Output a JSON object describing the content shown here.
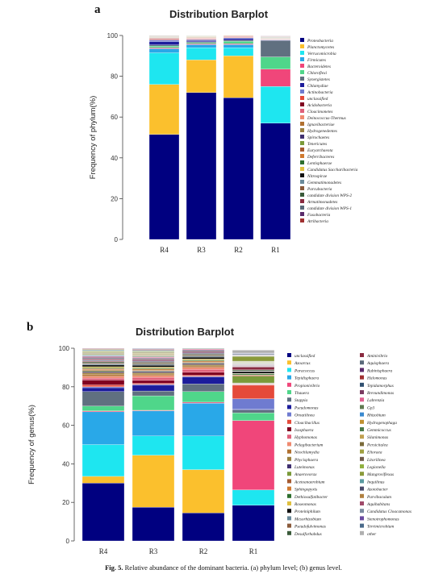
{
  "caption": {
    "label": "Fig. 5.",
    "text": "Relative abundance of the dominant bacteria. (a) phylum level; (b) genus level."
  },
  "chart_data": [
    {
      "panel": "a",
      "type": "bar",
      "stacked": true,
      "title": "Distribution Barplot",
      "ylabel": "Frequency of phylum(%)",
      "xlabel": "",
      "ylim": [
        0,
        100
      ],
      "yticks": [
        0,
        20,
        40,
        60,
        80,
        100
      ],
      "grid": false,
      "legend_position": "right",
      "categories": [
        "R4",
        "R3",
        "R2",
        "R1"
      ],
      "series": [
        {
          "name": "Proteobacteria",
          "color": "#000080",
          "values": [
            51.5,
            72,
            69.5,
            57
          ]
        },
        {
          "name": "Planctomycetes",
          "color": "#fbc02d",
          "values": [
            24.5,
            16,
            20.5,
            0
          ]
        },
        {
          "name": "Verrucomicrobia",
          "color": "#1ee6f0",
          "values": [
            15.5,
            6,
            4,
            18
          ]
        },
        {
          "name": "Firmicutes",
          "color": "#29a8e8",
          "values": [
            2,
            1.5,
            1.5,
            0
          ]
        },
        {
          "name": "Bacteroidetes",
          "color": "#f0467a",
          "values": [
            0.5,
            0.5,
            0.5,
            8.5
          ]
        },
        {
          "name": "Chloroflexi",
          "color": "#4fd68a",
          "values": [
            0.8,
            0.5,
            1.2,
            6
          ]
        },
        {
          "name": "Synergistetes",
          "color": "#607080",
          "values": [
            0.6,
            0.4,
            0.5,
            8
          ]
        },
        {
          "name": "Chlamydiae",
          "color": "#1c1c9c",
          "values": [
            1.6,
            0.6,
            0.8,
            0.2
          ]
        },
        {
          "name": "Actinobacteria",
          "color": "#6f7bd0",
          "values": [
            0.7,
            0.4,
            0.4,
            0.2
          ]
        },
        {
          "name": "unclassified",
          "color": "#e54a3a",
          "values": [
            0.3,
            0.3,
            0.3,
            0.1
          ]
        },
        {
          "name": "Acidobacteria",
          "color": "#800020",
          "values": [
            0.3,
            0.2,
            0.2,
            0.1
          ]
        },
        {
          "name": "Cloacimonetes",
          "color": "#e0607a",
          "values": [
            0.2,
            0.2,
            0.2,
            0.1
          ]
        },
        {
          "name": "Deinococcus-Thermus",
          "color": "#ef8a70",
          "values": [
            0.2,
            0.2,
            0.2,
            0.1
          ]
        },
        {
          "name": "Ignavibacteriae",
          "color": "#b07030",
          "values": [
            0.2,
            0.2,
            0.2,
            0.1
          ]
        },
        {
          "name": "Hydrogenedentes",
          "color": "#9a8040",
          "values": [
            0.2,
            0.2,
            0.2,
            0.1
          ]
        },
        {
          "name": "Spirochaetes",
          "color": "#403070",
          "values": [
            0.1,
            0.1,
            0.1,
            0.1
          ]
        },
        {
          "name": "Tenericutes",
          "color": "#7a9a3a",
          "values": [
            0.1,
            0.1,
            0.1,
            0.1
          ]
        },
        {
          "name": "Euryarchaeota",
          "color": "#a55a30",
          "values": [
            0.1,
            0.1,
            0.1,
            0.1
          ]
        },
        {
          "name": "Deferribacteres",
          "color": "#d07a30",
          "values": [
            0.1,
            0.1,
            0.1,
            0.1
          ]
        },
        {
          "name": "Lentisphaerae",
          "color": "#2d6e2d",
          "values": [
            0.1,
            0.1,
            0.1,
            0.1
          ]
        },
        {
          "name": "Candidatus Saccharibacteria",
          "color": "#e0c040",
          "values": [
            0.1,
            0.1,
            0.1,
            0.1
          ]
        },
        {
          "name": "Nitrospirae",
          "color": "#111111",
          "values": [
            0.1,
            0.1,
            0.1,
            0.1
          ]
        },
        {
          "name": "Gemmatimonadetes",
          "color": "#6a8a9a",
          "values": [
            0.1,
            0.1,
            0.1,
            0.1
          ]
        },
        {
          "name": "Parcubacteria",
          "color": "#8a5a3a",
          "values": [
            0.1,
            0.1,
            0.1,
            0.1
          ]
        },
        {
          "name": "candidate division WPS-2",
          "color": "#3a5a3a",
          "values": [
            0.1,
            0.1,
            0.1,
            0.1
          ]
        },
        {
          "name": "Armatimonadetes",
          "color": "#8a2a40",
          "values": [
            0.1,
            0.1,
            0.1,
            0.1
          ]
        },
        {
          "name": "candidate division WPS-1",
          "color": "#5a6a7a",
          "values": [
            0.1,
            0.1,
            0.1,
            0.1
          ]
        },
        {
          "name": "Fusobacteria",
          "color": "#5a2a6a",
          "values": [
            0.1,
            0.1,
            0.1,
            0.1
          ]
        },
        {
          "name": "Atribacteria",
          "color": "#a03030",
          "values": [
            0.1,
            0.1,
            0.1,
            0.1
          ]
        }
      ]
    },
    {
      "panel": "b",
      "type": "bar",
      "stacked": true,
      "title": "Distribution Barplot",
      "ylabel": "Frequency of genus(%)",
      "xlabel": "",
      "ylim": [
        0,
        100
      ],
      "yticks": [
        0,
        20,
        40,
        60,
        80,
        100
      ],
      "grid": false,
      "legend_position": "right",
      "categories": [
        "R4",
        "R3",
        "R2",
        "R1"
      ],
      "series": [
        {
          "name": "unclassified",
          "color": "#000080",
          "values": [
            30,
            17.5,
            14.5,
            18.5
          ]
        },
        {
          "name": "Azoarcus",
          "color": "#fbc02d",
          "values": [
            3.5,
            27,
            22.5,
            0
          ]
        },
        {
          "name": "Paracoccus",
          "color": "#1ee6f0",
          "values": [
            16.5,
            10,
            17.5,
            8
          ]
        },
        {
          "name": "Tepidisphaera",
          "color": "#29a8e8",
          "values": [
            17,
            13,
            17,
            0
          ]
        },
        {
          "name": "Propionivibrio",
          "color": "#f0467a",
          "values": [
            0.5,
            0.3,
            0.5,
            36
          ]
        },
        {
          "name": "Thauera",
          "color": "#4fd68a",
          "values": [
            2.5,
            7.5,
            5.5,
            4
          ]
        },
        {
          "name": "Stappia",
          "color": "#607080",
          "values": [
            7.5,
            2.5,
            4,
            1.5
          ]
        },
        {
          "name": "Pseudomonas",
          "color": "#1c1c9c",
          "values": [
            2,
            3,
            3.5,
            0.3
          ]
        },
        {
          "name": "Ornatilinea",
          "color": "#6f7bd0",
          "values": [
            0.5,
            0.5,
            0.5,
            5.5
          ]
        },
        {
          "name": "Cloacibacillus",
          "color": "#e54a3a",
          "values": [
            1,
            0.5,
            0.5,
            7
          ]
        },
        {
          "name": "Isosphaera",
          "color": "#800020",
          "values": [
            2.5,
            1.5,
            1.5,
            0.2
          ]
        },
        {
          "name": "Hyphomonas",
          "color": "#e0607a",
          "values": [
            1,
            1.5,
            1.5,
            0.2
          ]
        },
        {
          "name": "Pelagibacterium",
          "color": "#ef8a70",
          "values": [
            1,
            1,
            1,
            0.2
          ]
        },
        {
          "name": "Neochlamydia",
          "color": "#b07030",
          "values": [
            1,
            0.8,
            0.8,
            0.2
          ]
        },
        {
          "name": "Phycisphaera",
          "color": "#9a8040",
          "values": [
            0.8,
            0.8,
            0.8,
            0.2
          ]
        },
        {
          "name": "Luteimonas",
          "color": "#403070",
          "values": [
            0.6,
            0.6,
            0.6,
            0.2
          ]
        },
        {
          "name": "Anaerovorax",
          "color": "#7a9a3a",
          "values": [
            0.5,
            0.3,
            0.3,
            3.5
          ]
        },
        {
          "name": "Acetoanaerobium",
          "color": "#a55a30",
          "values": [
            0.5,
            0.4,
            0.4,
            0.5
          ]
        },
        {
          "name": "Sphingopyxis",
          "color": "#d07a30",
          "values": [
            0.5,
            0.5,
            0.5,
            0.2
          ]
        },
        {
          "name": "Dethiosulfatibacter",
          "color": "#2d6e2d",
          "values": [
            0.5,
            0.5,
            0.5,
            0.5
          ]
        },
        {
          "name": "Roseomonas",
          "color": "#e0c040",
          "values": [
            0.5,
            0.5,
            0.5,
            0.2
          ]
        },
        {
          "name": "Proteiniphilum",
          "color": "#111111",
          "values": [
            1,
            1,
            1,
            1
          ]
        },
        {
          "name": "Mesorhizobium",
          "color": "#6a8a9a",
          "values": [
            0.5,
            0.5,
            0.5,
            0.2
          ]
        },
        {
          "name": "Pseudofulvimonas",
          "color": "#8a5a3a",
          "values": [
            0.5,
            0.5,
            0.5,
            0.2
          ]
        },
        {
          "name": "Desulforhabdus",
          "color": "#3a5a3a",
          "values": [
            0.5,
            0.5,
            0.5,
            0.5
          ]
        },
        {
          "name": "Aminivibrio",
          "color": "#8a2a40",
          "values": [
            0.4,
            0.3,
            0.3,
            1.5
          ]
        },
        {
          "name": "Aquisphaera",
          "color": "#5a6a7a",
          "values": [
            0.4,
            0.4,
            0.4,
            0.2
          ]
        },
        {
          "name": "Rubinisphaera",
          "color": "#5a2a6a",
          "values": [
            0.4,
            0.4,
            0.4,
            0.2
          ]
        },
        {
          "name": "Halomonas",
          "color": "#a03030",
          "values": [
            0.4,
            0.4,
            0.4,
            0.2
          ]
        },
        {
          "name": "Tepidamorphus",
          "color": "#305070",
          "values": [
            0.4,
            0.4,
            0.4,
            0.2
          ]
        },
        {
          "name": "Brevundimonas",
          "color": "#7a3a60",
          "values": [
            0.4,
            0.4,
            0.4,
            0.2
          ]
        },
        {
          "name": "Labrenzia",
          "color": "#e06090",
          "values": [
            0.4,
            0.4,
            0.4,
            0.2
          ]
        },
        {
          "name": "Gp3",
          "color": "#607a50",
          "values": [
            0.3,
            0.3,
            0.3,
            0.2
          ]
        },
        {
          "name": "Rhizobium",
          "color": "#3a8ad0",
          "values": [
            0.3,
            0.3,
            0.3,
            0.2
          ]
        },
        {
          "name": "Hydrogenophaga",
          "color": "#c09030",
          "values": [
            0.3,
            0.3,
            0.3,
            0.2
          ]
        },
        {
          "name": "Gemmicoccus",
          "color": "#4a7a4a",
          "values": [
            0.3,
            0.3,
            0.3,
            0.2
          ]
        },
        {
          "name": "Silanimonas",
          "color": "#c0a050",
          "values": [
            0.3,
            0.3,
            0.3,
            0.2
          ]
        },
        {
          "name": "Persicitalea",
          "color": "#7a6a3a",
          "values": [
            0.3,
            0.3,
            0.3,
            0.2
          ]
        },
        {
          "name": "Elioraea",
          "color": "#a0a040",
          "values": [
            0.3,
            0.3,
            0.3,
            0.2
          ]
        },
        {
          "name": "Litorilinea",
          "color": "#705a4a",
          "values": [
            0.3,
            0.3,
            0.3,
            0.2
          ]
        },
        {
          "name": "Legionella",
          "color": "#90b040",
          "values": [
            0.3,
            0.3,
            0.3,
            0.2
          ]
        },
        {
          "name": "Mangroviflexus",
          "color": "#8a9a3a",
          "values": [
            0.3,
            0.3,
            0.3,
            2.5
          ]
        },
        {
          "name": "Inquilinus",
          "color": "#5a9aa0",
          "values": [
            0.3,
            0.3,
            0.3,
            0.2
          ]
        },
        {
          "name": "Azotobacter",
          "color": "#4a4a6a",
          "values": [
            0.3,
            0.3,
            0.3,
            0.2
          ]
        },
        {
          "name": "Parvibaculum",
          "color": "#b08040",
          "values": [
            0.3,
            0.3,
            0.3,
            0.2
          ]
        },
        {
          "name": "Aquihabitans",
          "color": "#a04a6a",
          "values": [
            0.3,
            0.3,
            0.3,
            0.2
          ]
        },
        {
          "name": "Candidatus Cloacamonas",
          "color": "#7a8aa0",
          "values": [
            0.3,
            0.3,
            0.3,
            0.5
          ]
        },
        {
          "name": "Stenotrophomonas",
          "color": "#6a4aa0",
          "values": [
            0.3,
            0.3,
            0.3,
            0.2
          ]
        },
        {
          "name": "Terrimicrobium",
          "color": "#4a6a8a",
          "values": [
            0.3,
            0.3,
            0.3,
            0.2
          ]
        },
        {
          "name": "other",
          "color": "#b0b0b0",
          "values": [
            2,
            2,
            2.5,
            1.5
          ]
        }
      ]
    }
  ]
}
